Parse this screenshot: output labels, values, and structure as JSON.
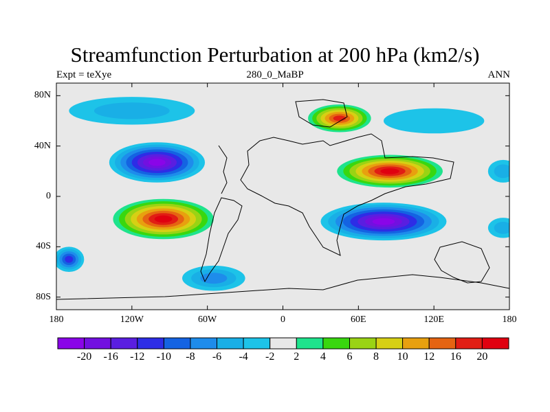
{
  "title": "Streamfunction Perturbation at 200 hPa (km2/s)",
  "subtitle_left": "Expt = teXye",
  "subtitle_center": "280_0_MaBP",
  "subtitle_right": "ANN",
  "lat_ticks": [
    "80N",
    "40N",
    "0",
    "40S",
    "80S"
  ],
  "lon_ticks": [
    "180",
    "120W",
    "60W",
    "0",
    "60E",
    "120E",
    "180"
  ],
  "colorbar": {
    "labels": [
      "-20",
      "-16",
      "-12",
      "-10",
      "-8",
      "-6",
      "-4",
      "-2",
      "2",
      "4",
      "6",
      "8",
      "10",
      "12",
      "16",
      "20"
    ],
    "colors": [
      "#8a05e8",
      "#7210e0",
      "#5a1ee0",
      "#2d2de6",
      "#1463e2",
      "#1e8ceb",
      "#19afe6",
      "#1dc3e8",
      "#e8e8e8",
      "#1ee38c",
      "#39d70f",
      "#9ad314",
      "#d6d014",
      "#e8a00f",
      "#e56412",
      "#e11e14",
      "#e00010"
    ]
  },
  "features": [
    {
      "lon": -100,
      "lat": 27,
      "lon_radius": 38,
      "lat_radius": 16,
      "level": 0
    },
    {
      "lon": -95,
      "lat": -18,
      "lon_radius": 40,
      "lat_radius": 16,
      "level": 16
    },
    {
      "lon": 85,
      "lat": 20,
      "lon_radius": 42,
      "lat_radius": 13,
      "level": 16
    },
    {
      "lon": 80,
      "lat": -20,
      "lon_radius": 50,
      "lat_radius": 15,
      "level": 0
    },
    {
      "lon": 45,
      "lat": 62,
      "lon_radius": 25,
      "lat_radius": 11,
      "level": 15
    },
    {
      "lon": -120,
      "lat": 68,
      "lon_radius": 50,
      "lat_radius": 11,
      "level": 6
    },
    {
      "lon": -55,
      "lat": -65,
      "lon_radius": 25,
      "lat_radius": 10,
      "level": 5
    },
    {
      "lon": 120,
      "lat": 60,
      "lon_radius": 40,
      "lat_radius": 10,
      "level": 7
    },
    {
      "lon": 175,
      "lat": -25,
      "lon_radius": 12,
      "lat_radius": 8,
      "level": 6
    },
    {
      "lon": 175,
      "lat": 20,
      "lon_radius": 12,
      "lat_radius": 9,
      "level": 6
    },
    {
      "lon": -170,
      "lat": -50,
      "lon_radius": 12,
      "lat_radius": 10,
      "level": 3
    }
  ]
}
